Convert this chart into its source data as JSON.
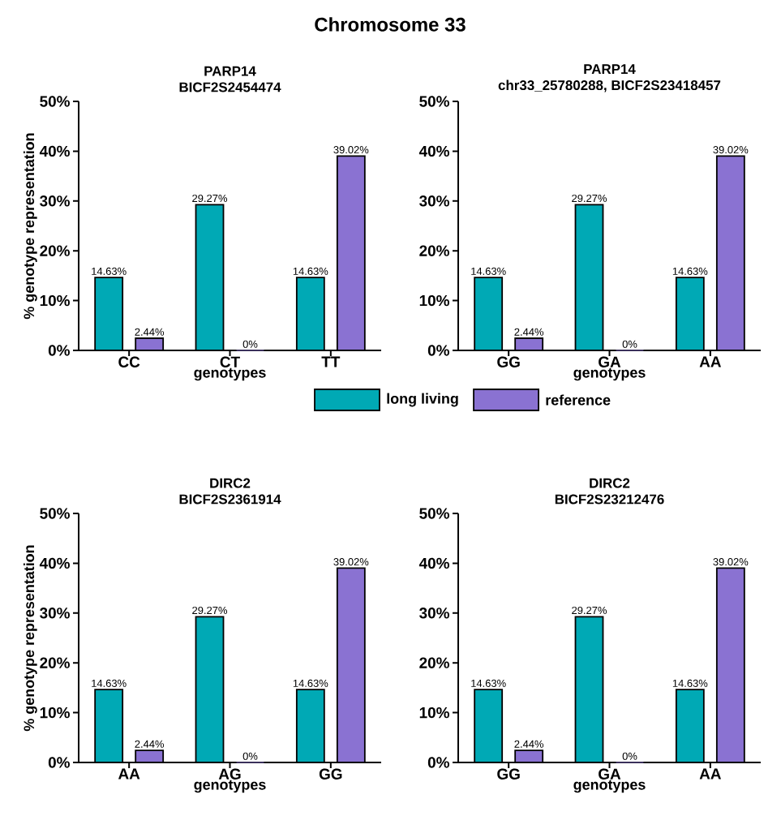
{
  "chart_data": [
    {
      "type": "bar",
      "title": "PARP14",
      "subtitle": "BICF2S2454474",
      "xlabel": "genotypes",
      "ylabel": "% genotype representation",
      "annotations": [
        "Chromosome 33"
      ],
      "legend": "bottom",
      "categories": [
        "CC",
        "CT",
        "TT"
      ],
      "ylim": [
        0,
        50
      ],
      "yticks": [
        {
          "value": 0,
          "label": "0%"
        },
        {
          "value": 10,
          "label": "10%"
        },
        {
          "value": 20,
          "label": "20%"
        },
        {
          "value": 30,
          "label": "30%"
        },
        {
          "value": 40,
          "label": "40%"
        },
        {
          "value": 50,
          "label": "50%"
        }
      ],
      "series": [
        {
          "name": "long living",
          "color": "#00a9b5",
          "values": [
            14.63,
            29.27,
            14.63
          ],
          "value_labels": [
            "14.63%",
            "29.27%",
            "14.63%"
          ]
        },
        {
          "name": "reference",
          "color": "#8a72d2",
          "values": [
            2.44,
            0,
            39.02
          ],
          "value_labels": [
            "2.44%",
            "0%",
            "39.02%"
          ]
        }
      ]
    },
    {
      "type": "bar",
      "title": "PARP14",
      "subtitle": "chr33_25780288, BICF2S23418457",
      "xlabel": "genotypes",
      "categories": [
        "GG",
        "GA",
        "AA"
      ],
      "ylim": [
        0,
        50
      ],
      "yticks": [
        {
          "value": 0,
          "label": "0%"
        },
        {
          "value": 10,
          "label": "10%"
        },
        {
          "value": 20,
          "label": "20%"
        },
        {
          "value": 30,
          "label": "30%"
        },
        {
          "value": 40,
          "label": "40%"
        },
        {
          "value": 50,
          "label": "50%"
        }
      ],
      "series": [
        {
          "color": "#00a9b5",
          "values": [
            14.63,
            29.27,
            14.63
          ],
          "value_labels": [
            "14.63%",
            "29.27%",
            "14.63%"
          ]
        },
        {
          "color": "#8a72d2",
          "values": [
            2.44,
            0,
            39.02
          ],
          "value_labels": [
            "2.44%",
            "0%",
            "39.02%"
          ]
        }
      ]
    },
    {
      "type": "bar",
      "title": "DIRC2",
      "subtitle": "BICF2S2361914",
      "xlabel": "genotypes",
      "ylabel": "% genotype representation",
      "categories": [
        "AA",
        "AG",
        "GG"
      ],
      "ylim": [
        0,
        50
      ],
      "yticks": [
        {
          "value": 0,
          "label": "0%"
        },
        {
          "value": 10,
          "label": "10%"
        },
        {
          "value": 20,
          "label": "20%"
        },
        {
          "value": 30,
          "label": "30%"
        },
        {
          "value": 40,
          "label": "40%"
        },
        {
          "value": 50,
          "label": "50%"
        }
      ],
      "series": [
        {
          "color": "#00a9b5",
          "values": [
            14.63,
            29.27,
            14.63
          ],
          "value_labels": [
            "14.63%",
            "29.27%",
            "14.63%"
          ]
        },
        {
          "color": "#8a72d2",
          "values": [
            2.44,
            0,
            39.02
          ],
          "value_labels": [
            "2.44%",
            "0%",
            "39.02%"
          ]
        }
      ]
    },
    {
      "type": "bar",
      "title": "DIRC2",
      "subtitle": "BICF2S23212476",
      "xlabel": "genotypes",
      "categories": [
        "GG",
        "GA",
        "AA"
      ],
      "ylim": [
        0,
        50
      ],
      "yticks": [
        {
          "value": 0,
          "label": "0%"
        },
        {
          "value": 10,
          "label": "10%"
        },
        {
          "value": 20,
          "label": "20%"
        },
        {
          "value": 30,
          "label": "30%"
        },
        {
          "value": 40,
          "label": "40%"
        },
        {
          "value": 50,
          "label": "50%"
        }
      ],
      "series": [
        {
          "color": "#00a9b5",
          "values": [
            14.63,
            29.27,
            14.63
          ],
          "value_labels": [
            "14.63%",
            "29.27%",
            "14.63%"
          ]
        },
        {
          "color": "#8a72d2",
          "values": [
            2.44,
            0,
            39.02
          ],
          "value_labels": [
            "2.44%",
            "0%",
            "39.02%"
          ]
        }
      ]
    }
  ]
}
